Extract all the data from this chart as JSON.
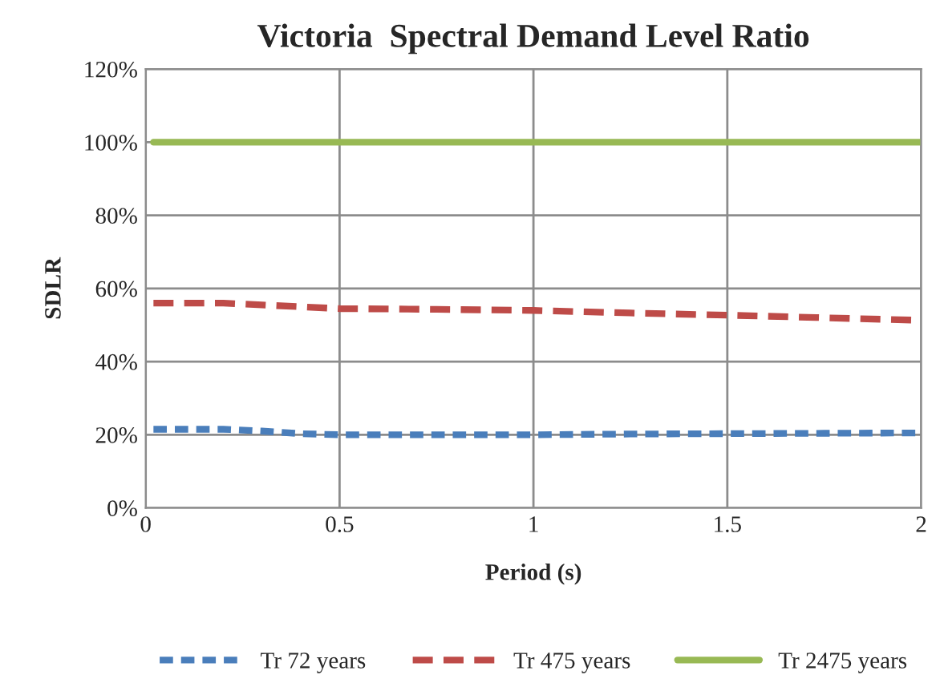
{
  "chart_data": {
    "type": "line",
    "title": "Victoria  Spectral Demand Level Ratio",
    "xlabel": "Period (s)",
    "ylabel": "SDLR",
    "x": [
      0.02,
      0.2,
      0.3,
      0.4,
      0.5,
      0.75,
      1,
      1.25,
      1.5,
      1.75,
      2
    ],
    "series": [
      {
        "name": "Tr 72 years",
        "color": "#4a7ebb",
        "line_style": "dotted",
        "values": [
          21.5,
          21.5,
          21,
          20.3,
          20,
          20,
          20,
          20.2,
          20.3,
          20.4,
          20.5
        ]
      },
      {
        "name": "Tr 475 years",
        "color": "#be4b48",
        "line_style": "dashed",
        "values": [
          56,
          56,
          55.5,
          55,
          54.5,
          54.3,
          54,
          53.3,
          52.7,
          52,
          51.3
        ]
      },
      {
        "name": "Tr 2475 years",
        "color": "#98b954",
        "line_style": "solid",
        "values": [
          100,
          100,
          100,
          100,
          100,
          100,
          100,
          100,
          100,
          100,
          100
        ]
      }
    ],
    "xlim": [
      0,
      2
    ],
    "xticks": [
      0,
      0.5,
      1,
      1.5,
      2
    ],
    "ylim": [
      0,
      120
    ],
    "yticks": [
      {
        "value": 0,
        "label": "0%"
      },
      {
        "value": 20,
        "label": "20%"
      },
      {
        "value": 40,
        "label": "40%"
      },
      {
        "value": 60,
        "label": "60%"
      },
      {
        "value": 80,
        "label": "80%"
      },
      {
        "value": 100,
        "label": "100%"
      },
      {
        "value": 120,
        "label": "120%"
      }
    ],
    "grid": true,
    "legend": "bottom"
  }
}
